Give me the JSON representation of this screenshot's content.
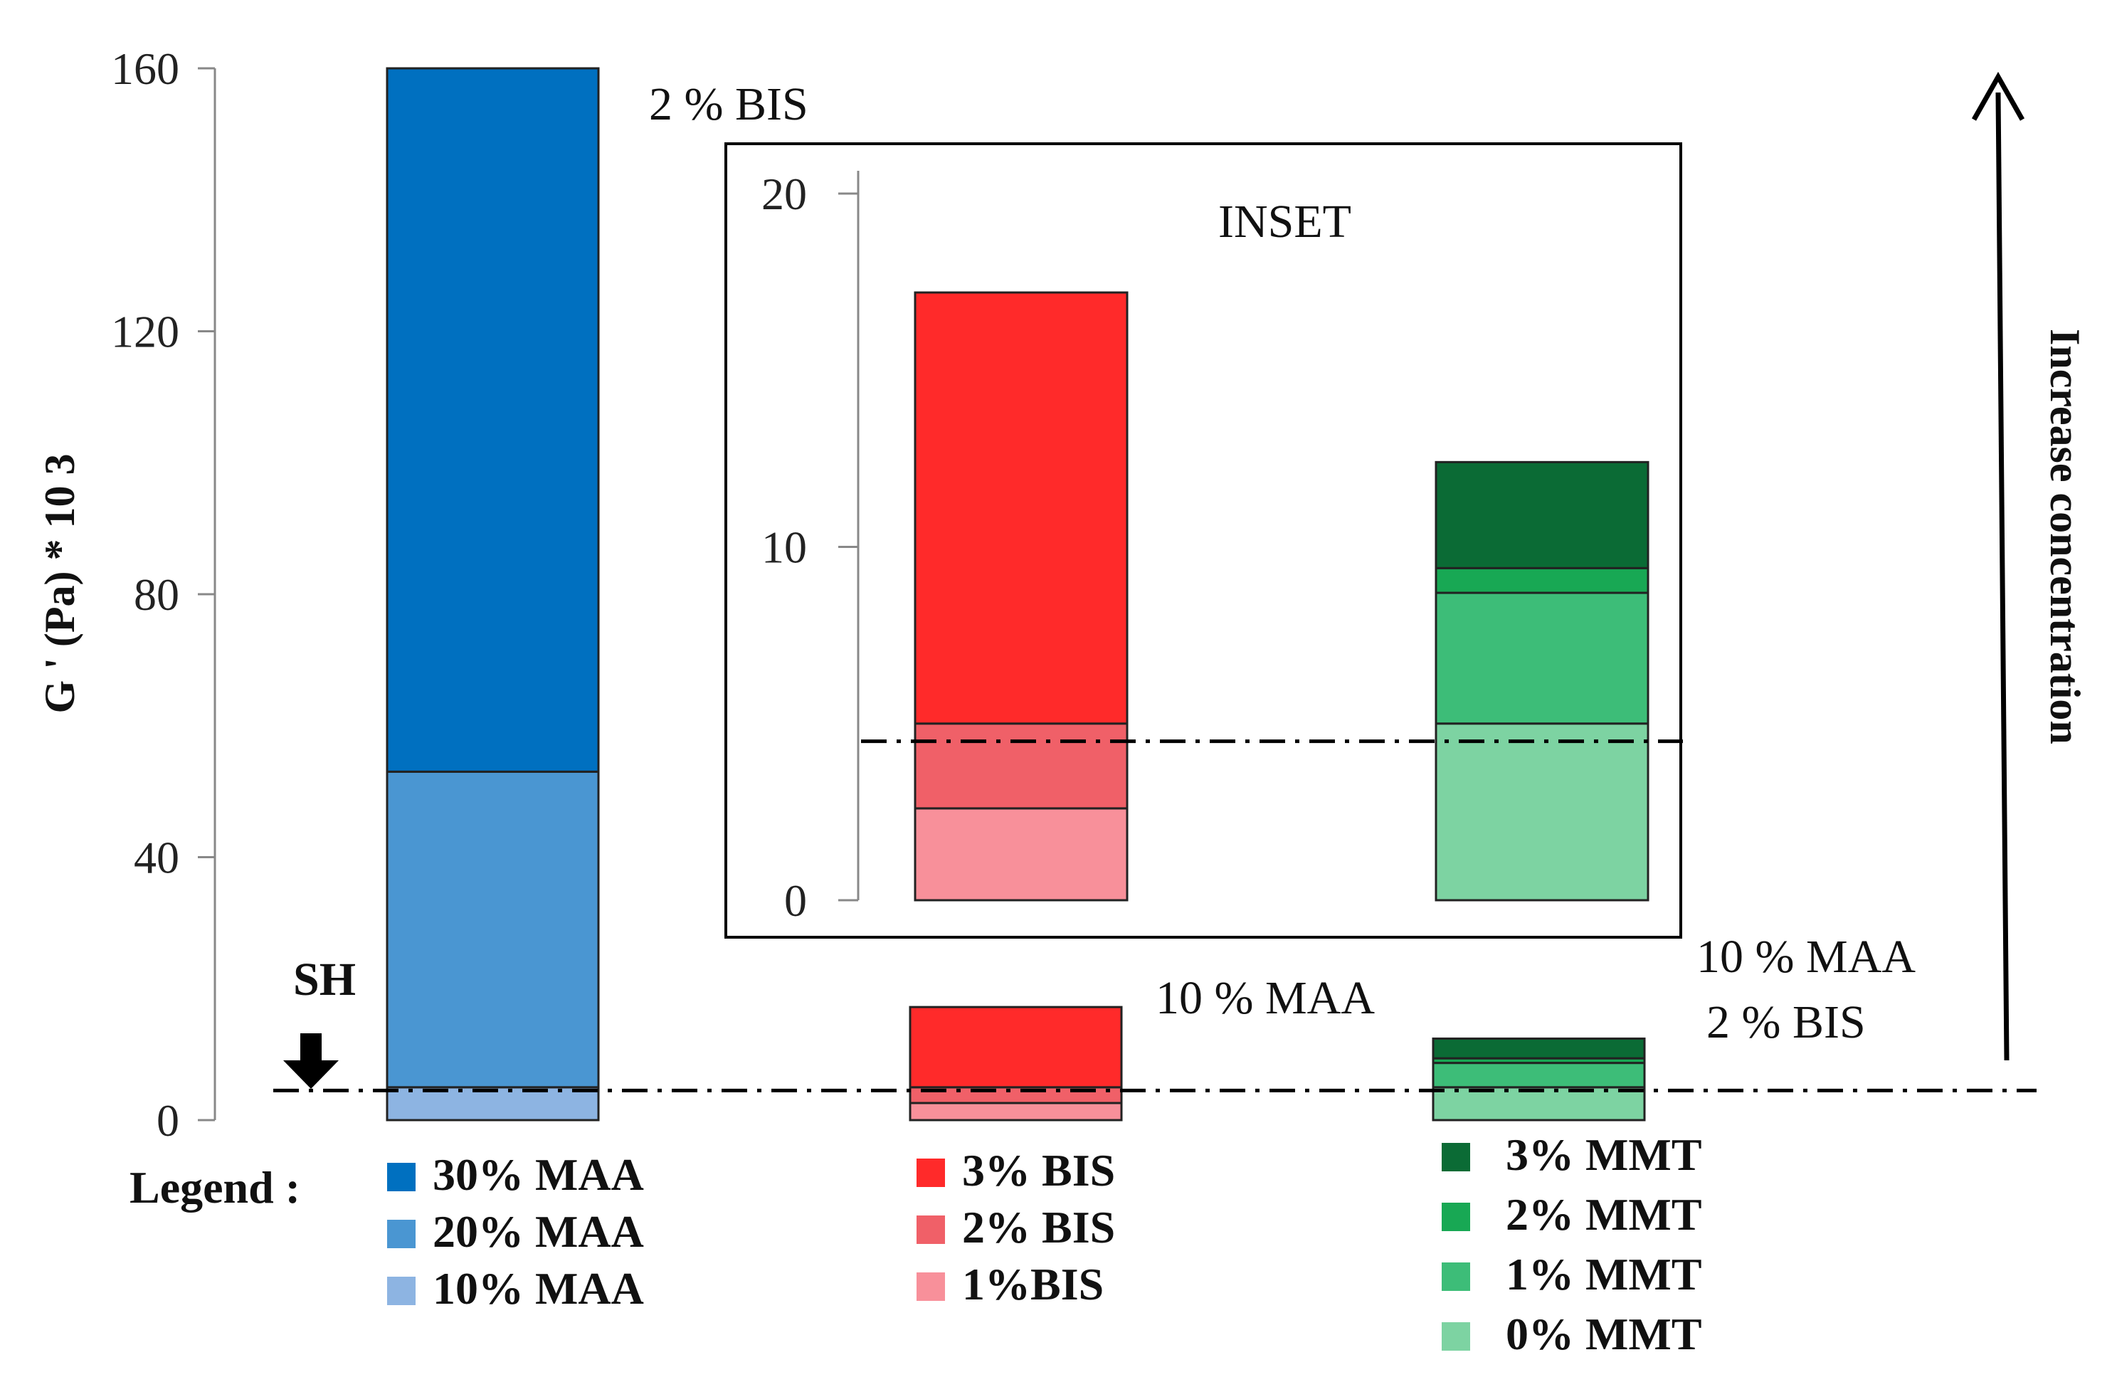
{
  "chart_data": {
    "type": "stacked-bar",
    "ylabel": "G ' (Pa) * 10 3",
    "ylim": [
      0,
      160
    ],
    "yticks": [
      0,
      40,
      80,
      120,
      160
    ],
    "reference_line": {
      "label": "SH",
      "value": 4.5
    },
    "side_label": "Increase concentration",
    "legend_title": "Legend :",
    "groups": [
      {
        "name": "MAA",
        "annotation": [
          "2 % BIS"
        ],
        "segments": [
          {
            "name": "10% MAA",
            "value": 5,
            "color": "#8DB4E2"
          },
          {
            "name": "20% MAA",
            "value": 53,
            "color": "#4A96D2"
          },
          {
            "name": "30% MAA",
            "value": 160,
            "color": "#0070C0"
          }
        ]
      },
      {
        "name": "BIS",
        "annotation": [
          "10 % MAA"
        ],
        "segments": [
          {
            "name": "1%BIS",
            "value": 2.6,
            "color": "#F8909A"
          },
          {
            "name": "2% BIS",
            "value": 5,
            "color": "#F06068"
          },
          {
            "name": "3% BIS",
            "value": 17.2,
            "color": "#FF2A2A"
          }
        ]
      },
      {
        "name": "MMT",
        "annotation": [
          "10 % MAA",
          "2 % BIS"
        ],
        "segments": [
          {
            "name": "0% MMT",
            "value": 5,
            "color": "#7DD3A2"
          },
          {
            "name": "1% MMT",
            "value": 8.7,
            "color": "#3DBD78"
          },
          {
            "name": "2% MMT",
            "value": 9.4,
            "color": "#18A854"
          },
          {
            "name": "3% MMT",
            "value": 12.4,
            "color": "#0B6B35"
          }
        ]
      }
    ],
    "inset": {
      "title": "INSET",
      "ylim": [
        0,
        20
      ],
      "yticks": [
        0,
        10,
        20
      ],
      "groups_shown": [
        "BIS",
        "MMT"
      ]
    }
  }
}
